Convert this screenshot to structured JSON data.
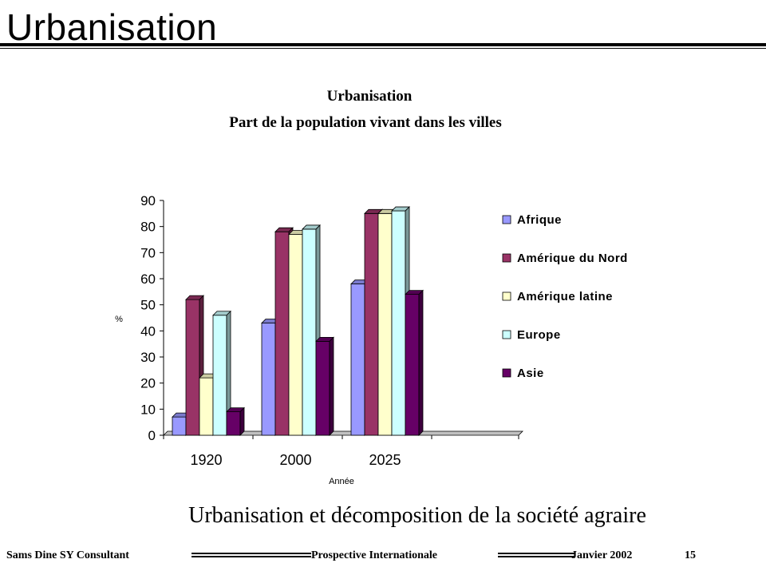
{
  "slide": {
    "title": "Urbanisation",
    "caption": "Urbanisation et décomposition de la société agraire"
  },
  "footer": {
    "left": "Sams Dine SY Consultant",
    "center": "Prospective Internationale",
    "date": "Janvier 2002",
    "page": "15"
  },
  "chart_data": {
    "type": "bar",
    "title": "Urbanisation",
    "subtitle": "Part de la population vivant dans les villes",
    "xlabel": "Année",
    "ylabel": "%",
    "categories": [
      "1920",
      "2000",
      "2025"
    ],
    "ylim": [
      0,
      90
    ],
    "yticks": [
      0,
      10,
      20,
      30,
      40,
      50,
      60,
      70,
      80,
      90
    ],
    "legend_position": "right",
    "grid": false,
    "series": [
      {
        "name": "Afrique",
        "values": [
          7,
          43,
          58
        ],
        "color": "#9999ff"
      },
      {
        "name": "Amérique du Nord",
        "values": [
          52,
          78,
          85
        ],
        "color": "#993366"
      },
      {
        "name": "Amérique latine",
        "values": [
          22,
          77,
          85
        ],
        "color": "#ffffcc"
      },
      {
        "name": "Europe",
        "values": [
          46,
          79,
          86
        ],
        "color": "#ccffff"
      },
      {
        "name": "Asie",
        "values": [
          9,
          36,
          54
        ],
        "color": "#660066"
      }
    ]
  }
}
